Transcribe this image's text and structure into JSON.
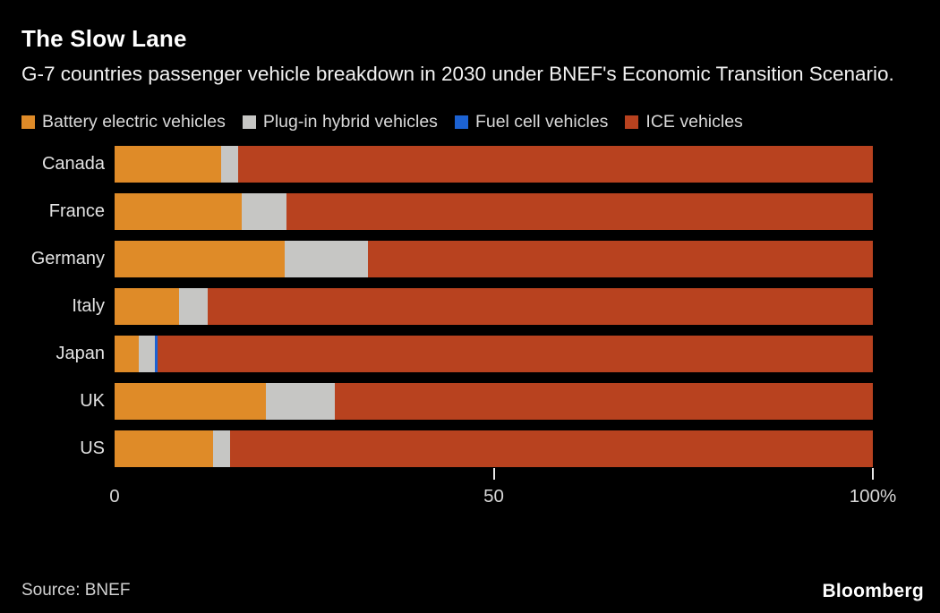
{
  "header": {
    "title": "The Slow Lane",
    "subtitle": "G-7 countries passenger vehicle breakdown in 2030 under BNEF's Economic Transition Scenario."
  },
  "legend": [
    {
      "key": "bev",
      "label": "Battery electric vehicles",
      "color": "#DF8B28"
    },
    {
      "key": "phev",
      "label": "Plug-in hybrid vehicles",
      "color": "#C6C6C4"
    },
    {
      "key": "fcv",
      "label": "Fuel cell vehicles",
      "color": "#1C62D2"
    },
    {
      "key": "ice",
      "label": "ICE vehicles",
      "color": "#B8421F"
    }
  ],
  "chart_data": {
    "type": "bar",
    "orientation": "horizontal",
    "stacked": true,
    "title": "The Slow Lane",
    "xlabel": "",
    "ylabel": "",
    "xlim": [
      0,
      100
    ],
    "unit": "%",
    "grid": false,
    "legend_position": "top",
    "categories": [
      "Canada",
      "France",
      "Germany",
      "Italy",
      "Japan",
      "UK",
      "US"
    ],
    "series": [
      {
        "name": "Battery electric vehicles",
        "key": "bev",
        "color": "#DF8B28",
        "values": [
          14.0,
          16.8,
          22.4,
          8.5,
          3.2,
          20.0,
          13.0
        ]
      },
      {
        "name": "Plug-in hybrid vehicles",
        "key": "phev",
        "color": "#C6C6C4",
        "values": [
          2.3,
          5.9,
          11.0,
          3.8,
          2.1,
          9.0,
          2.2
        ]
      },
      {
        "name": "Fuel cell vehicles",
        "key": "fcv",
        "color": "#1C62D2",
        "values": [
          0,
          0,
          0,
          0,
          0.4,
          0,
          0
        ]
      },
      {
        "name": "ICE vehicles",
        "key": "ice",
        "color": "#B8421F",
        "values": [
          83.7,
          77.3,
          66.6,
          87.7,
          94.3,
          71.0,
          84.8
        ]
      }
    ],
    "x_ticks": [
      {
        "value": 0,
        "label": "0",
        "tick_mark": false
      },
      {
        "value": 50,
        "label": "50",
        "tick_mark": true
      },
      {
        "value": 100,
        "label": "100%",
        "tick_mark": true
      }
    ]
  },
  "footer": {
    "source": "Source: BNEF",
    "logo": "Bloomberg"
  },
  "colors": {
    "background": "#000000",
    "title_text": "#FFFFFF",
    "secondary_text": "#D9D9D9"
  }
}
